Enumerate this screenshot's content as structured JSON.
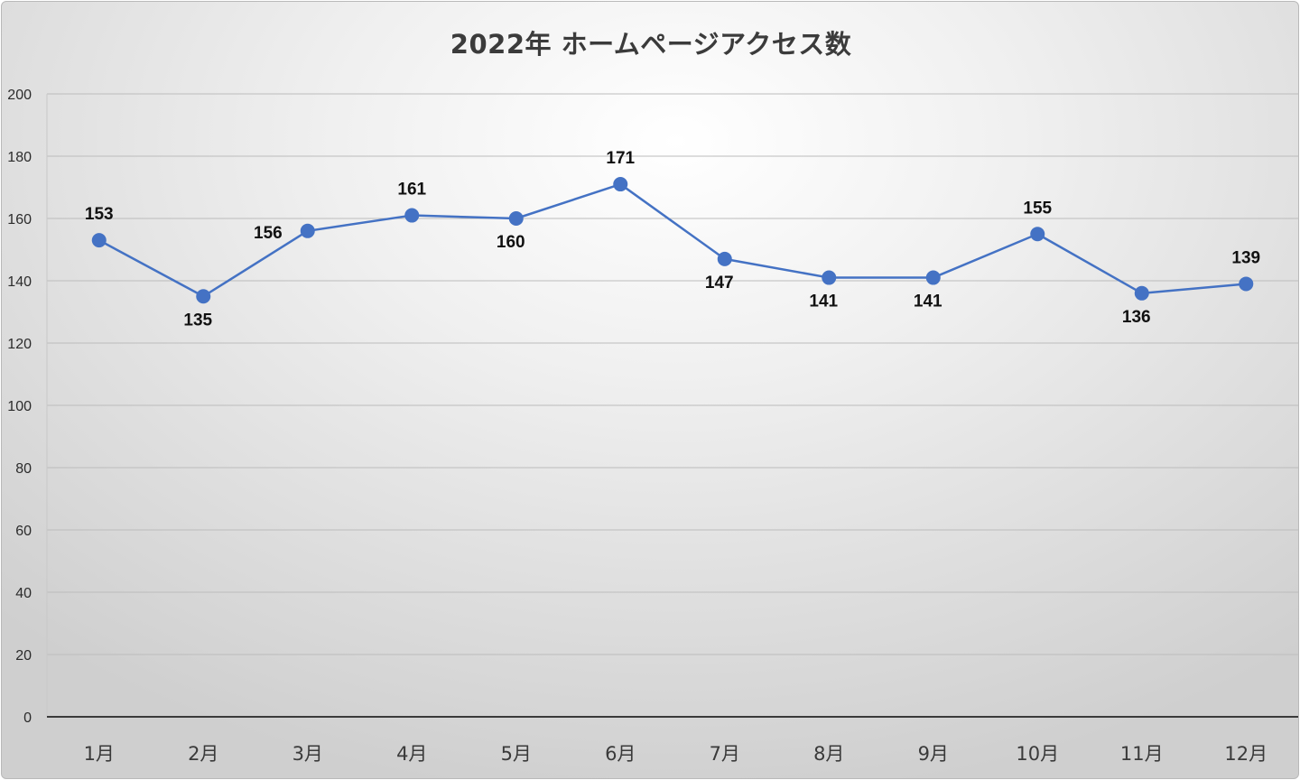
{
  "chart_data": {
    "type": "line",
    "title": "2022年 ホームページアクセス数",
    "xlabel": "",
    "ylabel": "",
    "categories": [
      "1月",
      "2月",
      "3月",
      "4月",
      "5月",
      "6月",
      "7月",
      "8月",
      "9月",
      "10月",
      "11月",
      "12月"
    ],
    "series": [
      {
        "values": [
          153,
          135,
          156,
          161,
          160,
          171,
          147,
          141,
          141,
          155,
          136,
          139
        ],
        "color": "#4472c4"
      }
    ],
    "ylim": [
      0,
      200
    ],
    "yticks": [
      0,
      20,
      40,
      60,
      80,
      100,
      120,
      140,
      160,
      180,
      200
    ],
    "grid": true,
    "legend": "none",
    "data_labels": true
  }
}
